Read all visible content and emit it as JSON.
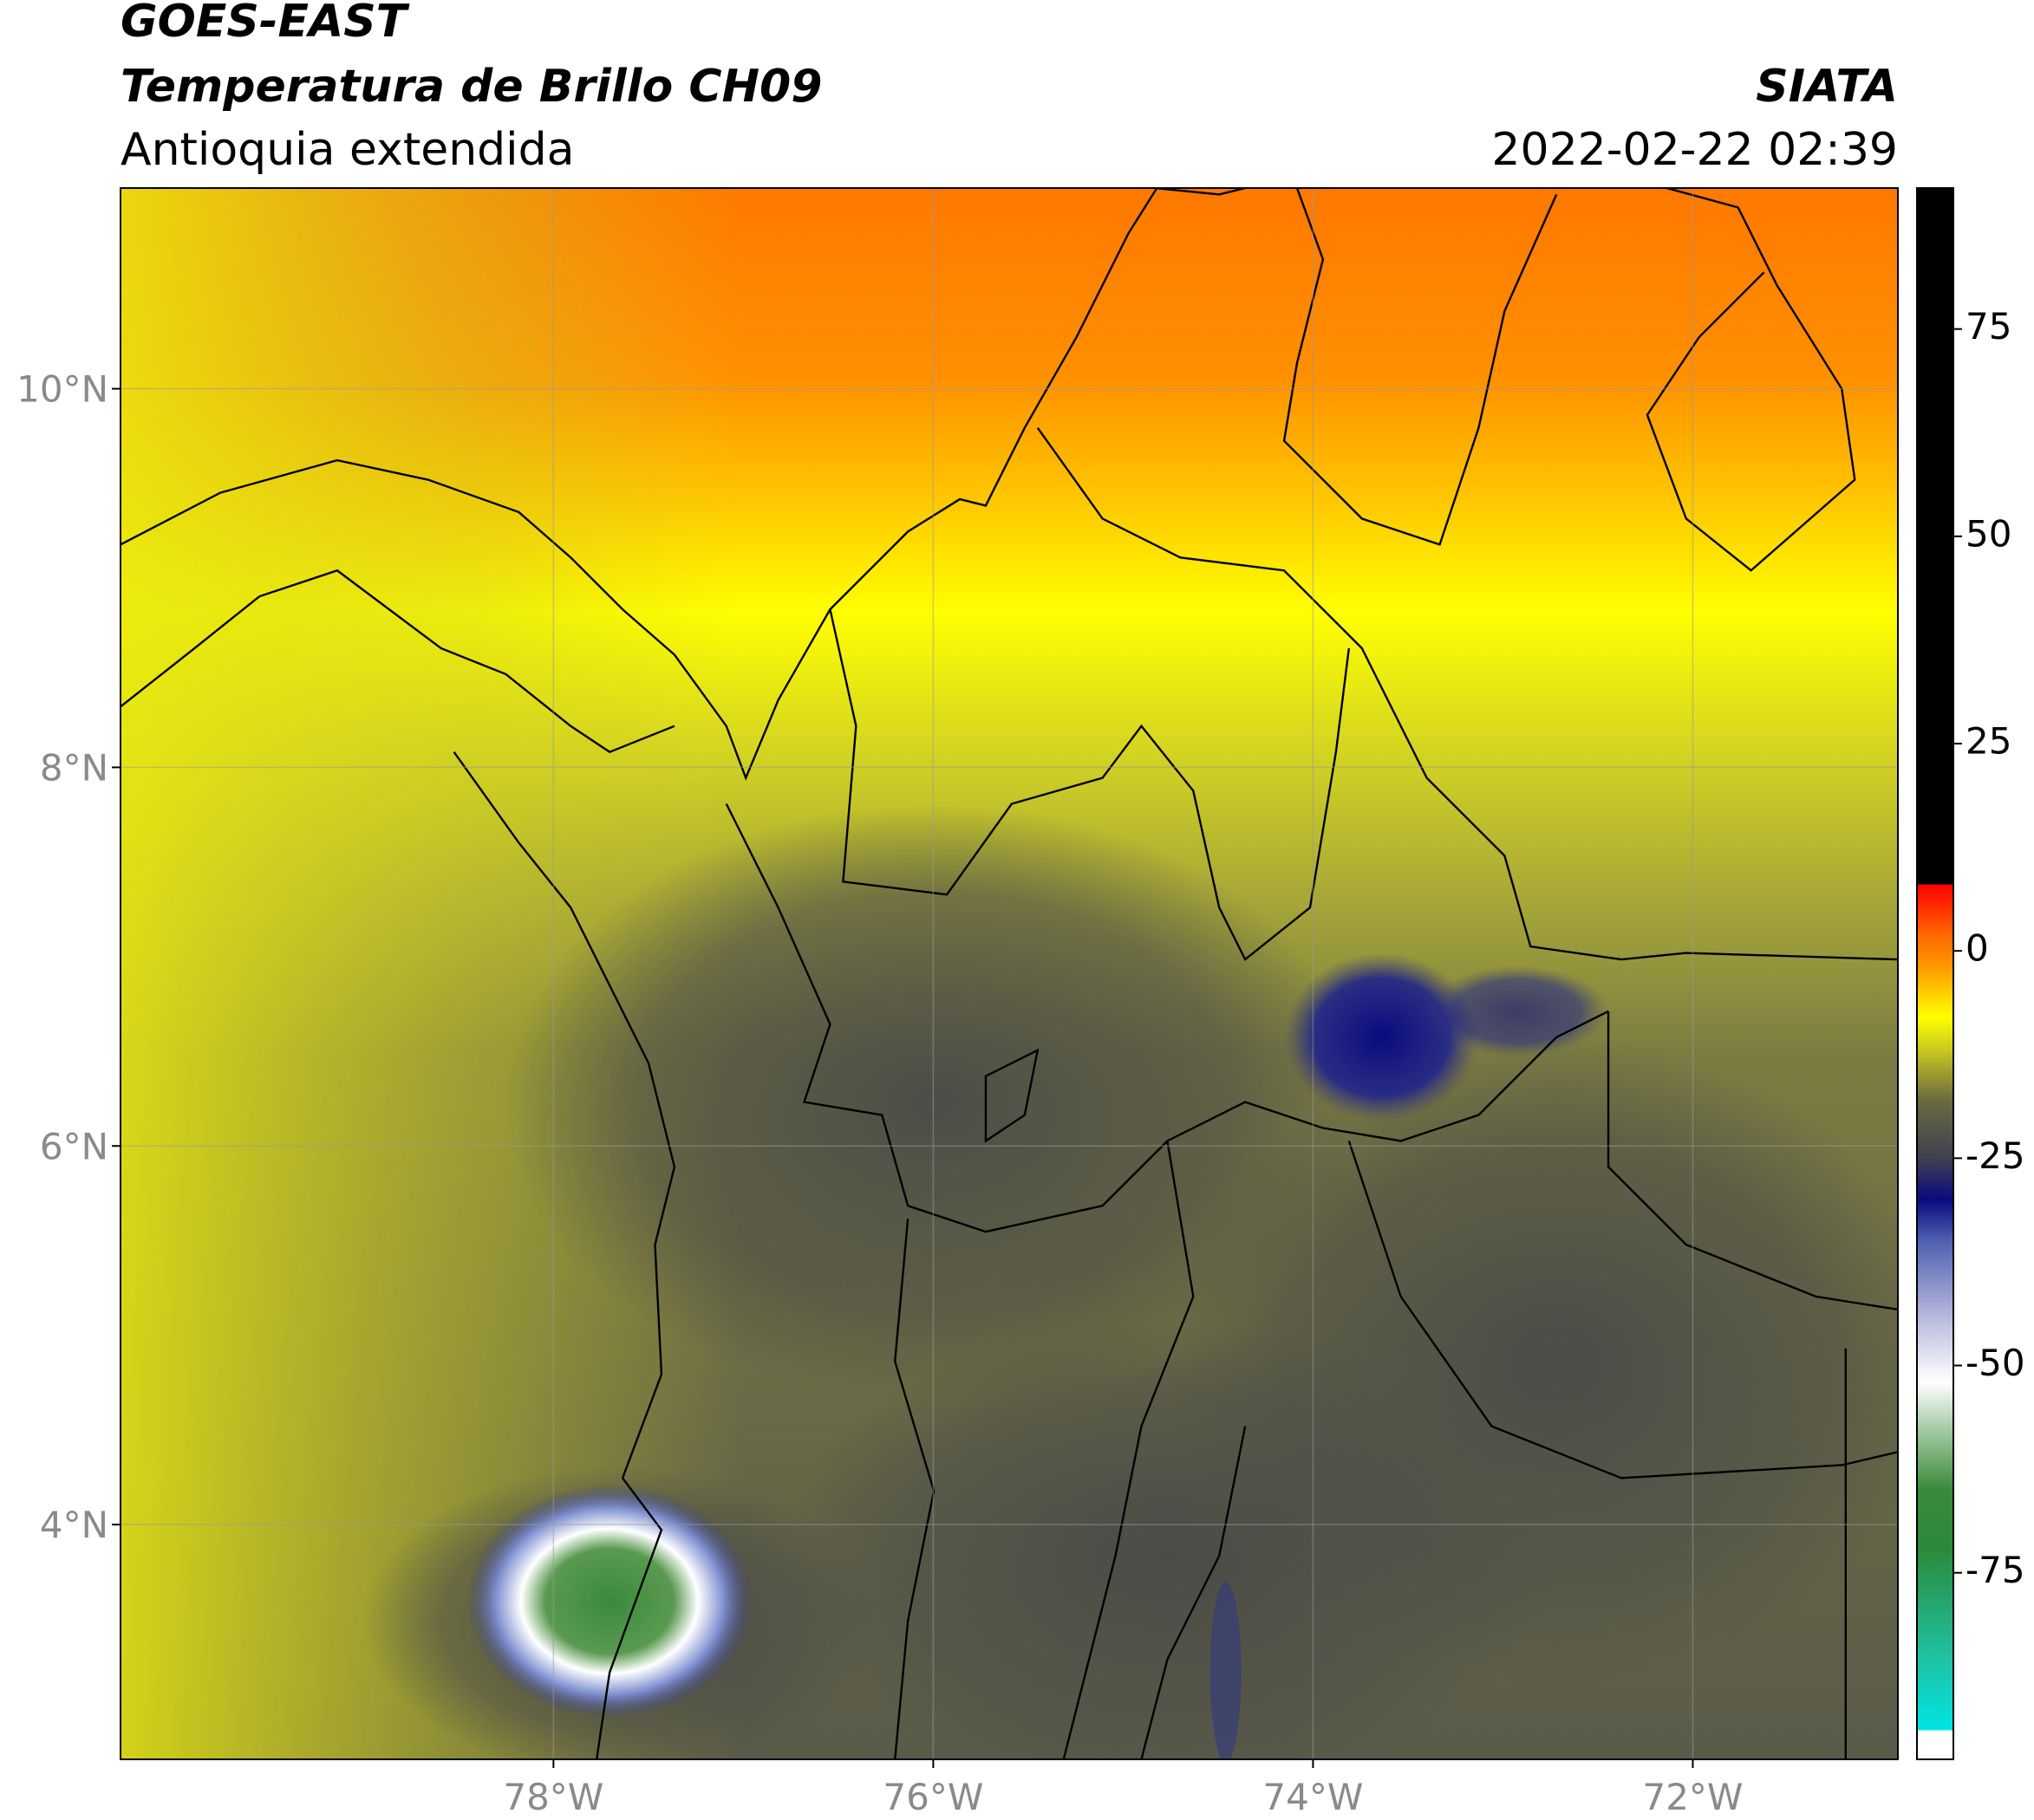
{
  "header": {
    "title": "GOES-EAST",
    "subtitle": "Temperatura de Brillo CH09",
    "region": "Antioquia extendida",
    "source": "SIATA",
    "datetime": "2022-02-22 02:39"
  },
  "map": {
    "xlim": [
      -80.28,
      -70.92
    ],
    "ylim": [
      2.76,
      11.06
    ],
    "xticks": [
      {
        "value": -78,
        "label": "78°W"
      },
      {
        "value": -76,
        "label": "76°W"
      },
      {
        "value": -74,
        "label": "74°W"
      },
      {
        "value": -72,
        "label": "72°W"
      }
    ],
    "yticks": [
      {
        "value": 10,
        "label": "10°N"
      },
      {
        "value": 8,
        "label": "8°N"
      },
      {
        "value": 6,
        "label": "6°N"
      },
      {
        "value": 4,
        "label": "4°N"
      }
    ],
    "grid": true
  },
  "colorbar": {
    "lim": [
      -97.5,
      92
    ],
    "ticks": [
      75,
      50,
      25,
      0,
      -25,
      -50,
      -75
    ],
    "stops": [
      {
        "value": -97.5,
        "color": "#ffffff"
      },
      {
        "value": -94,
        "color": "#ffffff"
      },
      {
        "value": -94,
        "color": "#00e5e5"
      },
      {
        "value": -85,
        "color": "#20c0a0"
      },
      {
        "value": -72,
        "color": "#2a8a3a"
      },
      {
        "value": -65,
        "color": "#3a8a3a"
      },
      {
        "value": -58,
        "color": "#a0c8a0"
      },
      {
        "value": -52,
        "color": "#ffffff"
      },
      {
        "value": -45,
        "color": "#c0c0e0"
      },
      {
        "value": -35,
        "color": "#5060b0"
      },
      {
        "value": -30,
        "color": "#0a0a80"
      },
      {
        "value": -25,
        "color": "#404050"
      },
      {
        "value": -18,
        "color": "#6a6a40"
      },
      {
        "value": -12,
        "color": "#c8c820"
      },
      {
        "value": -8,
        "color": "#ffff00"
      },
      {
        "value": -2,
        "color": "#ff9900"
      },
      {
        "value": 2,
        "color": "#ff6600"
      },
      {
        "value": 8,
        "color": "#ff0000"
      },
      {
        "value": 8,
        "color": "#000000"
      },
      {
        "value": 92,
        "color": "#000000"
      }
    ]
  }
}
